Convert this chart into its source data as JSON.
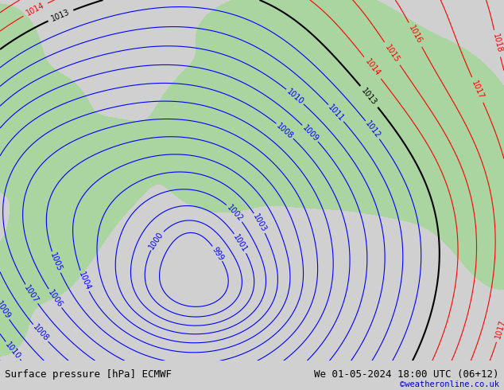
{
  "title_left": "Surface pressure [hPa] ECMWF",
  "title_right": "We 01-05-2024 18:00 UTC (06+12)",
  "watermark": "©weatheronline.co.uk",
  "watermark_color": "#0000cc",
  "land_color": "#aad4a0",
  "sea_color": "#d0d0d0",
  "footer_bg": "#ffffff",
  "footer_text_color": "#000000",
  "blue_contour_color": "#0000ff",
  "black_contour_color": "#000000",
  "red_contour_color": "#ff0000",
  "label_fontsize": 7,
  "footer_fontsize": 9,
  "figsize": [
    6.34,
    4.9
  ],
  "dpi": 100
}
